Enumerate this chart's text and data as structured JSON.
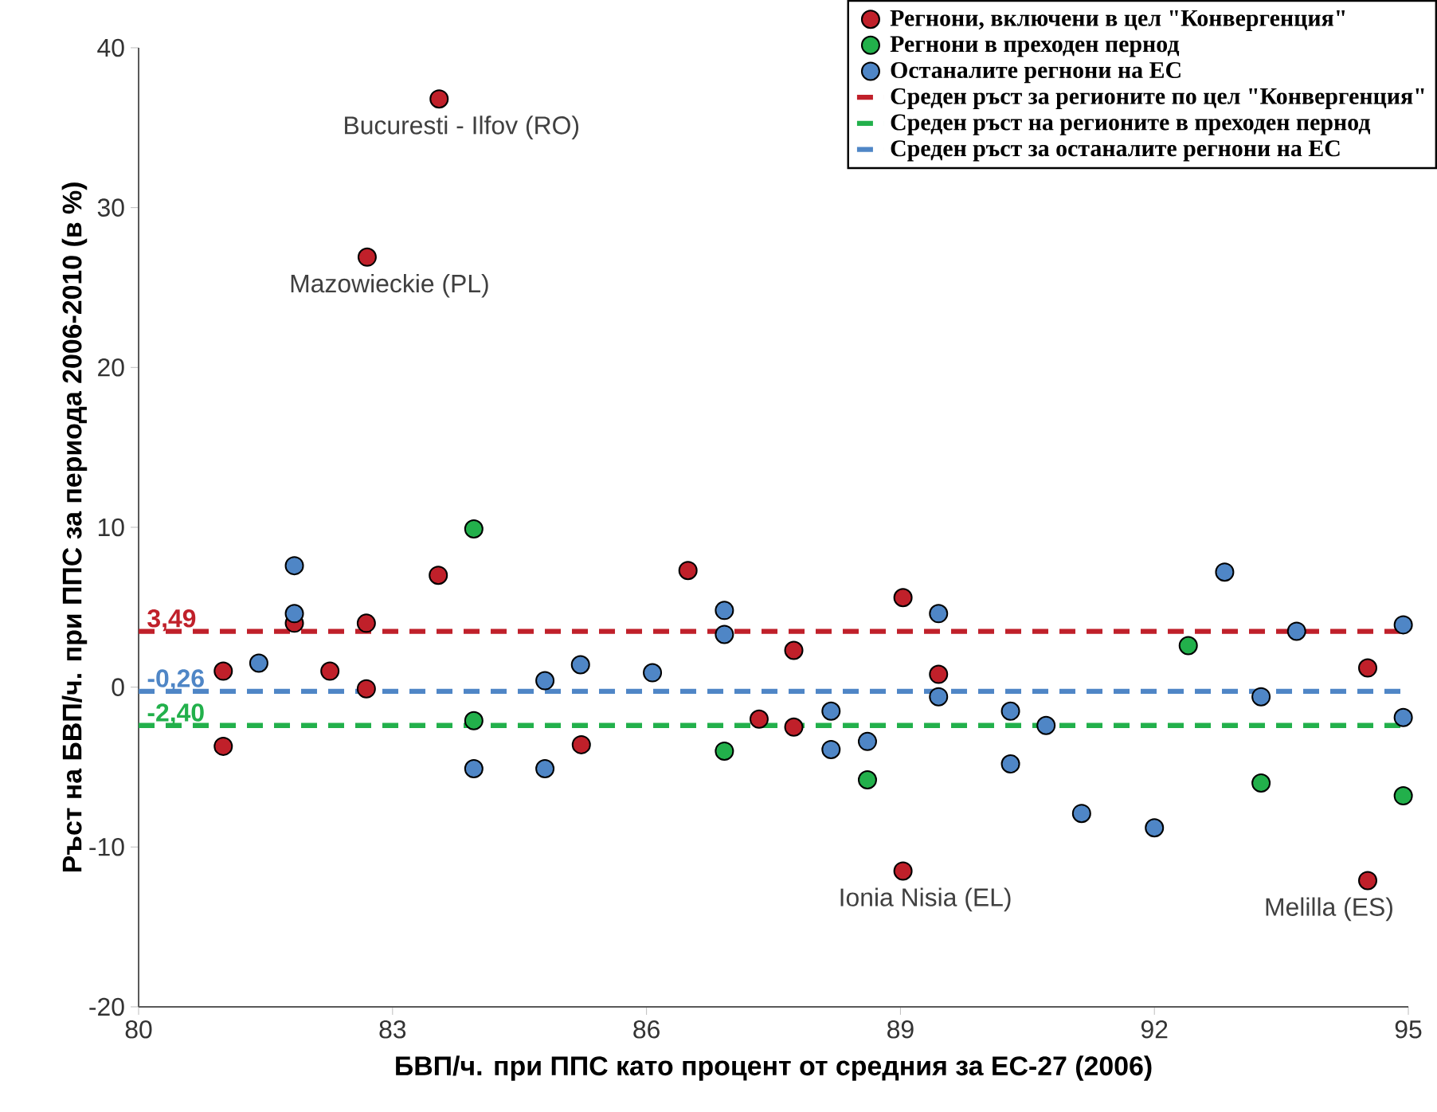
{
  "chart_data": {
    "type": "scatter",
    "xlabel": "БВП/ч. при ППС като процент от средния за ЕС-27 (2006)",
    "ylabel": "Ръст на БВП/ч. при ППС за периода 2006-2010 (в %)",
    "xlim": [
      80,
      95
    ],
    "xticks": [
      80,
      83,
      86,
      89,
      92,
      95
    ],
    "ylim": [
      -20,
      40
    ],
    "yticks": [
      -20,
      -10,
      0,
      10,
      20,
      30,
      40
    ],
    "legend": "top right",
    "marker": "circle",
    "series": [
      {
        "name": "Регнони, включени в цел \"Конвергенция\"",
        "color": "#c0202a",
        "x": [
          81.0,
          81.0,
          81.84,
          82.26,
          82.69,
          82.69,
          83.54,
          85.23,
          86.49,
          87.33,
          87.74,
          87.74,
          89.03,
          89.45,
          89.03,
          83.55,
          82.7,
          94.52,
          94.52
        ],
        "values": [
          1.0,
          -3.7,
          4.0,
          1.0,
          4.0,
          -0.1,
          7.0,
          -3.6,
          7.3,
          -2.0,
          2.3,
          -2.5,
          5.6,
          0.8,
          -11.5,
          36.8,
          26.9,
          1.2,
          -12.1
        ]
      },
      {
        "name": "Регнони в преходен пернод",
        "color": "#22b04b",
        "x": [
          83.96,
          83.96,
          86.92,
          88.61,
          92.4,
          93.26,
          94.94
        ],
        "values": [
          9.9,
          -2.1,
          -4.0,
          -5.8,
          2.6,
          -6.0,
          -6.8
        ]
      },
      {
        "name": "Останалите регнони на ЕС",
        "color": "#4f86c6",
        "x": [
          81.84,
          81.84,
          81.42,
          83.96,
          84.8,
          84.8,
          85.22,
          86.07,
          86.92,
          86.92,
          88.18,
          88.18,
          88.61,
          89.45,
          89.45,
          90.3,
          90.3,
          90.72,
          91.14,
          92.0,
          92.83,
          93.26,
          93.68,
          94.94,
          94.94
        ],
        "values": [
          7.6,
          4.6,
          1.5,
          -5.1,
          -5.1,
          0.4,
          1.4,
          0.9,
          4.8,
          3.3,
          -1.5,
          -3.9,
          -3.4,
          4.6,
          -0.6,
          -1.5,
          -4.8,
          -2.4,
          -7.9,
          -8.8,
          7.2,
          -0.6,
          3.5,
          3.9,
          -1.9
        ]
      },
      {
        "type": "line",
        "marker": "none",
        "line_style": "dashed",
        "name": "Среден ръст за регионите по цел \"Конвергенция\"",
        "color": "#c0202a",
        "x": [
          80,
          95
        ],
        "values": [
          3.49,
          3.49
        ],
        "value_labels": [
          "3,49",
          null
        ]
      },
      {
        "type": "line",
        "marker": "none",
        "line_style": "dashed",
        "name": "Среден ръст на регионите в преходен пернод",
        "color": "#22b04b",
        "x": [
          80,
          95
        ],
        "values": [
          -2.4,
          -2.4
        ],
        "value_labels": [
          "-2,40",
          null
        ]
      },
      {
        "type": "line",
        "marker": "none",
        "line_style": "dashed",
        "name": "Среден ръст за останалите регнони на ЕС",
        "color": "#4f86c6",
        "x": [
          80,
          95
        ],
        "values": [
          -0.26,
          -0.26
        ],
        "value_labels": [
          "-0,26",
          null
        ]
      }
    ],
    "annotations": [
      {
        "text": "Bucuresti - Ilfov (RO)",
        "x": 83.55,
        "y": 36.8
      },
      {
        "text": "Mazowieckie (PL)",
        "x": 82.7,
        "y": 26.9
      },
      {
        "text": "Ionia Nisia (EL)",
        "x": 89.03,
        "y": -11.5
      },
      {
        "text": "Melilla (ES)",
        "x": 94.52,
        "y": -12.1
      }
    ]
  }
}
